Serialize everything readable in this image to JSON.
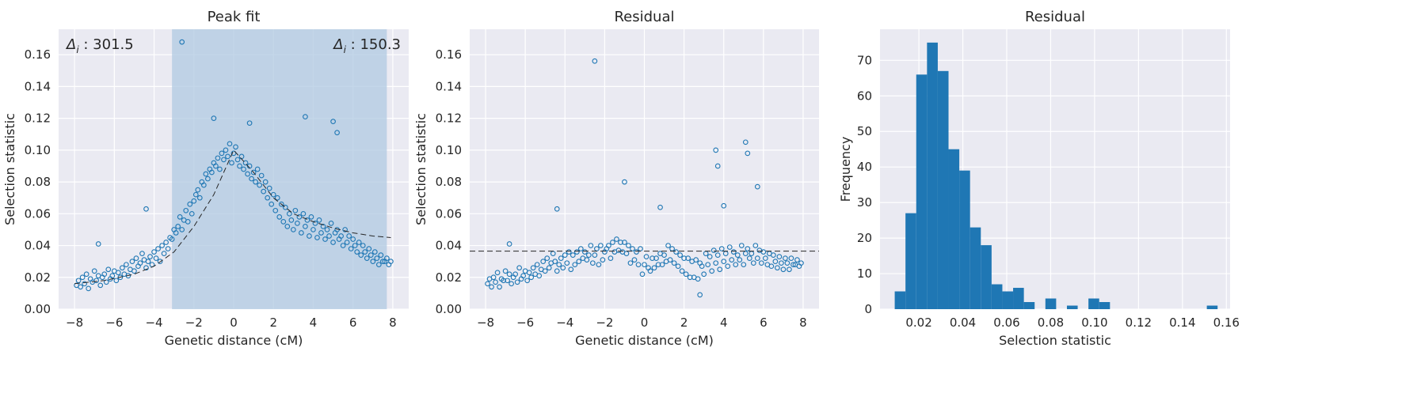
{
  "colors": {
    "background": "#eaeaf2",
    "grid": "#ffffff",
    "points": "#1f77b4",
    "bars": "#1f77b4",
    "span": "#b0c9e2",
    "fit": "#262626"
  },
  "chart_data": [
    {
      "type": "scatter",
      "title": "Peak fit",
      "xlabel": "Genetic distance (cM)",
      "ylabel": "Selection statistic",
      "xlim": [
        -8.8,
        8.8
      ],
      "ylim": [
        0,
        0.176
      ],
      "xticks": [
        -8,
        -6,
        -4,
        -2,
        0,
        2,
        4,
        6,
        8
      ],
      "yticks": [
        0.0,
        0.02,
        0.04,
        0.06,
        0.08,
        0.1,
        0.12,
        0.14,
        0.16
      ],
      "grid": true,
      "span": [
        -3.1,
        7.7
      ],
      "fit_line": {
        "x": [
          -8.0,
          -6.5,
          -5.0,
          -4.0,
          -3.0,
          -2.0,
          -1.0,
          0.0,
          1.0,
          2.0,
          3.0,
          4.0,
          5.0,
          6.0,
          7.0,
          7.9
        ],
        "y": [
          0.016,
          0.018,
          0.022,
          0.027,
          0.036,
          0.052,
          0.072,
          0.1,
          0.086,
          0.07,
          0.06,
          0.055,
          0.051,
          0.048,
          0.046,
          0.045
        ]
      },
      "annotations": [
        {
          "symbol": "Δ",
          "sub": "i",
          "text": " : 301.5",
          "position": "top-left"
        },
        {
          "symbol": "Δ",
          "sub": "i",
          "text": " : 150.3",
          "position": "top-right"
        }
      ],
      "x": [
        -7.9,
        -7.8,
        -7.7,
        -7.6,
        -7.5,
        -7.4,
        -7.3,
        -7.2,
        -7.1,
        -7.0,
        -6.9,
        -6.8,
        -6.7,
        -6.6,
        -6.5,
        -6.4,
        -6.3,
        -6.2,
        -6.1,
        -6.0,
        -5.9,
        -5.8,
        -5.7,
        -5.6,
        -5.5,
        -5.4,
        -5.3,
        -5.2,
        -5.1,
        -5.0,
        -4.9,
        -4.8,
        -4.7,
        -4.6,
        -4.5,
        -4.4,
        -4.3,
        -4.2,
        -4.1,
        -4.0,
        -3.9,
        -3.8,
        -3.7,
        -3.6,
        -3.5,
        -3.4,
        -3.3,
        -3.2,
        -3.1,
        -3.0,
        -2.9,
        -2.8,
        -2.7,
        -2.6,
        -2.5,
        -2.4,
        -2.3,
        -2.2,
        -2.1,
        -2.0,
        -1.9,
        -1.8,
        -1.7,
        -1.6,
        -1.5,
        -1.4,
        -1.3,
        -1.2,
        -1.1,
        -1.0,
        -0.9,
        -0.8,
        -0.7,
        -0.6,
        -0.5,
        -0.4,
        -0.3,
        -0.2,
        -0.1,
        0.0,
        0.1,
        0.2,
        0.3,
        0.4,
        0.5,
        0.6,
        0.7,
        0.8,
        0.9,
        1.0,
        1.1,
        1.2,
        1.3,
        1.4,
        1.5,
        1.6,
        1.7,
        1.8,
        1.9,
        2.0,
        2.1,
        2.2,
        2.3,
        2.4,
        2.5,
        2.6,
        2.7,
        2.8,
        2.9,
        3.0,
        3.1,
        3.2,
        3.3,
        3.4,
        3.5,
        3.6,
        3.7,
        3.8,
        3.9,
        4.0,
        4.1,
        4.2,
        4.3,
        4.4,
        4.5,
        4.6,
        4.7,
        4.8,
        4.9,
        5.0,
        5.1,
        5.2,
        5.3,
        5.4,
        5.5,
        5.6,
        5.7,
        5.8,
        5.9,
        6.0,
        6.1,
        6.2,
        6.3,
        6.4,
        6.5,
        6.6,
        6.7,
        6.8,
        6.9,
        7.0,
        7.1,
        7.2,
        7.3,
        7.4,
        7.5,
        7.6,
        7.7,
        7.8,
        7.9,
        -2.6,
        -1.0,
        0.8,
        3.6,
        5.0,
        5.2,
        -4.4,
        -6.8
      ],
      "y": [
        0.015,
        0.018,
        0.014,
        0.02,
        0.016,
        0.022,
        0.013,
        0.019,
        0.017,
        0.024,
        0.018,
        0.021,
        0.015,
        0.02,
        0.022,
        0.017,
        0.025,
        0.019,
        0.021,
        0.024,
        0.018,
        0.023,
        0.02,
        0.026,
        0.022,
        0.028,
        0.021,
        0.025,
        0.03,
        0.024,
        0.032,
        0.027,
        0.029,
        0.035,
        0.031,
        0.026,
        0.03,
        0.033,
        0.028,
        0.036,
        0.032,
        0.038,
        0.03,
        0.04,
        0.035,
        0.042,
        0.038,
        0.045,
        0.044,
        0.05,
        0.048,
        0.052,
        0.058,
        0.05,
        0.056,
        0.062,
        0.055,
        0.066,
        0.06,
        0.068,
        0.072,
        0.075,
        0.07,
        0.08,
        0.078,
        0.085,
        0.082,
        0.088,
        0.086,
        0.092,
        0.09,
        0.095,
        0.088,
        0.098,
        0.094,
        0.1,
        0.096,
        0.104,
        0.092,
        0.098,
        0.102,
        0.094,
        0.09,
        0.096,
        0.088,
        0.092,
        0.085,
        0.09,
        0.082,
        0.086,
        0.08,
        0.088,
        0.078,
        0.084,
        0.074,
        0.08,
        0.07,
        0.076,
        0.066,
        0.072,
        0.062,
        0.07,
        0.058,
        0.066,
        0.055,
        0.064,
        0.052,
        0.06,
        0.056,
        0.05,
        0.062,
        0.054,
        0.058,
        0.048,
        0.06,
        0.052,
        0.056,
        0.046,
        0.058,
        0.05,
        0.054,
        0.045,
        0.056,
        0.048,
        0.052,
        0.044,
        0.05,
        0.046,
        0.054,
        0.042,
        0.048,
        0.05,
        0.044,
        0.046,
        0.04,
        0.05,
        0.042,
        0.046,
        0.038,
        0.044,
        0.04,
        0.036,
        0.042,
        0.034,
        0.04,
        0.036,
        0.032,
        0.038,
        0.034,
        0.03,
        0.036,
        0.032,
        0.028,
        0.034,
        0.03,
        0.03,
        0.032,
        0.028,
        0.03,
        0.168,
        0.12,
        0.117,
        0.121,
        0.118,
        0.111,
        0.063,
        0.041
      ]
    },
    {
      "type": "scatter",
      "title": "Residual",
      "xlabel": "Genetic distance (cM)",
      "ylabel": "Selection statistic",
      "xlim": [
        -8.8,
        8.8
      ],
      "ylim": [
        0,
        0.176
      ],
      "xticks": [
        -8,
        -6,
        -4,
        -2,
        0,
        2,
        4,
        6,
        8
      ],
      "yticks": [
        0.0,
        0.02,
        0.04,
        0.06,
        0.08,
        0.1,
        0.12,
        0.14,
        0.16
      ],
      "grid": true,
      "hline": 0.0365,
      "x": [
        -7.9,
        -7.8,
        -7.7,
        -7.6,
        -7.5,
        -7.4,
        -7.3,
        -7.2,
        -7.1,
        -7.0,
        -6.9,
        -6.8,
        -6.7,
        -6.6,
        -6.5,
        -6.4,
        -6.3,
        -6.2,
        -6.1,
        -6.0,
        -5.9,
        -5.8,
        -5.7,
        -5.6,
        -5.5,
        -5.4,
        -5.3,
        -5.2,
        -5.1,
        -5.0,
        -4.9,
        -4.8,
        -4.7,
        -4.6,
        -4.5,
        -4.4,
        -4.3,
        -4.2,
        -4.1,
        -4.0,
        -3.9,
        -3.8,
        -3.7,
        -3.6,
        -3.5,
        -3.4,
        -3.3,
        -3.2,
        -3.1,
        -3.0,
        -2.9,
        -2.8,
        -2.7,
        -2.6,
        -2.5,
        -2.4,
        -2.3,
        -2.2,
        -2.1,
        -2.0,
        -1.9,
        -1.8,
        -1.7,
        -1.6,
        -1.5,
        -1.4,
        -1.3,
        -1.2,
        -1.1,
        -1.0,
        -0.9,
        -0.8,
        -0.7,
        -0.6,
        -0.5,
        -0.4,
        -0.3,
        -0.2,
        -0.1,
        0.0,
        0.1,
        0.2,
        0.3,
        0.4,
        0.5,
        0.6,
        0.7,
        0.8,
        0.9,
        1.0,
        1.1,
        1.2,
        1.3,
        1.4,
        1.5,
        1.6,
        1.7,
        1.8,
        1.9,
        2.0,
        2.1,
        2.2,
        2.3,
        2.4,
        2.5,
        2.6,
        2.7,
        2.8,
        2.9,
        3.0,
        3.1,
        3.2,
        3.3,
        3.4,
        3.5,
        3.6,
        3.7,
        3.8,
        3.9,
        4.0,
        4.1,
        4.2,
        4.3,
        4.4,
        4.5,
        4.6,
        4.7,
        4.8,
        4.9,
        5.0,
        5.1,
        5.2,
        5.3,
        5.4,
        5.5,
        5.6,
        5.7,
        5.8,
        5.9,
        6.0,
        6.1,
        6.2,
        6.3,
        6.4,
        6.5,
        6.6,
        6.7,
        6.8,
        6.9,
        7.0,
        7.1,
        7.2,
        7.3,
        7.4,
        7.5,
        7.6,
        7.7,
        7.8,
        7.9,
        -2.5,
        -1.0,
        0.8,
        3.6,
        3.7,
        5.1,
        5.2,
        4.0,
        5.7,
        -4.4,
        -6.8,
        2.8
      ],
      "y": [
        0.016,
        0.019,
        0.014,
        0.02,
        0.017,
        0.023,
        0.014,
        0.019,
        0.018,
        0.024,
        0.018,
        0.022,
        0.016,
        0.02,
        0.022,
        0.017,
        0.026,
        0.019,
        0.021,
        0.024,
        0.018,
        0.023,
        0.02,
        0.026,
        0.022,
        0.028,
        0.021,
        0.025,
        0.03,
        0.024,
        0.032,
        0.026,
        0.029,
        0.035,
        0.03,
        0.024,
        0.028,
        0.032,
        0.026,
        0.034,
        0.029,
        0.036,
        0.025,
        0.034,
        0.028,
        0.036,
        0.03,
        0.038,
        0.032,
        0.036,
        0.031,
        0.034,
        0.04,
        0.029,
        0.034,
        0.038,
        0.028,
        0.04,
        0.031,
        0.036,
        0.038,
        0.04,
        0.032,
        0.042,
        0.036,
        0.044,
        0.037,
        0.042,
        0.036,
        0.042,
        0.035,
        0.04,
        0.029,
        0.038,
        0.031,
        0.036,
        0.028,
        0.038,
        0.022,
        0.028,
        0.033,
        0.026,
        0.024,
        0.032,
        0.026,
        0.032,
        0.028,
        0.035,
        0.028,
        0.034,
        0.03,
        0.04,
        0.031,
        0.038,
        0.029,
        0.036,
        0.027,
        0.034,
        0.024,
        0.032,
        0.022,
        0.032,
        0.02,
        0.03,
        0.02,
        0.031,
        0.019,
        0.029,
        0.027,
        0.022,
        0.035,
        0.028,
        0.033,
        0.024,
        0.037,
        0.029,
        0.034,
        0.025,
        0.038,
        0.03,
        0.035,
        0.027,
        0.039,
        0.031,
        0.036,
        0.028,
        0.034,
        0.031,
        0.04,
        0.028,
        0.035,
        0.038,
        0.032,
        0.035,
        0.029,
        0.04,
        0.032,
        0.037,
        0.029,
        0.036,
        0.032,
        0.028,
        0.035,
        0.027,
        0.034,
        0.03,
        0.026,
        0.033,
        0.029,
        0.025,
        0.032,
        0.029,
        0.025,
        0.032,
        0.028,
        0.028,
        0.031,
        0.027,
        0.029,
        0.156,
        0.08,
        0.064,
        0.1,
        0.09,
        0.105,
        0.098,
        0.065,
        0.077,
        0.063,
        0.041,
        0.009
      ]
    },
    {
      "type": "bar",
      "title": "Residual",
      "xlabel": "Selection statistic",
      "ylabel": "Frequency",
      "xlim": [
        0.0023,
        0.1617
      ],
      "ylim": [
        0,
        78.75
      ],
      "xticks": [
        0.02,
        0.04,
        0.06,
        0.08,
        0.1,
        0.12,
        0.14,
        0.16
      ],
      "yticks": [
        0,
        10,
        20,
        30,
        40,
        50,
        60,
        70
      ],
      "grid": true,
      "bin_edges": [
        0.009,
        0.0139,
        0.0188,
        0.0237,
        0.0286,
        0.0335,
        0.0384,
        0.0433,
        0.0482,
        0.0531,
        0.058,
        0.0629,
        0.0678,
        0.0727,
        0.0776,
        0.0825,
        0.0874,
        0.0923,
        0.0972,
        0.1021,
        0.107,
        0.1119,
        0.1168,
        0.1217,
        0.1266,
        0.1315,
        0.1364,
        0.1413,
        0.1462,
        0.1511,
        0.156
      ],
      "values": [
        5,
        27,
        66,
        75,
        67,
        45,
        39,
        23,
        18,
        7,
        5,
        6,
        2,
        0,
        3,
        0,
        1,
        0,
        3,
        2,
        0,
        0,
        0,
        0,
        0,
        0,
        0,
        0,
        0,
        1
      ]
    }
  ]
}
